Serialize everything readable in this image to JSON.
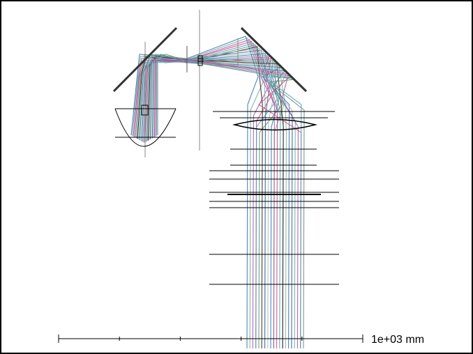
{
  "scale_bar": {
    "label": "1e+03 mm",
    "divisions": 5
  },
  "colors": {
    "background": "#ffffff",
    "border": "#000000",
    "optics": "#000000",
    "mirror": "#222222",
    "axis": "#888888"
  },
  "ray_colors": [
    "#3a7ab5",
    "#7fa89a",
    "#9b5fb0",
    "#d0507a",
    "#5aa0c8",
    "#6f8f72",
    "#2c2c2c",
    "#8fb3a8",
    "#4b6fa8",
    "#a8c0b8"
  ],
  "elements": [
    {
      "id": "fold-mirror-left",
      "type": "fold-mirror"
    },
    {
      "id": "fold-mirror-right",
      "type": "fold-mirror"
    },
    {
      "id": "primary-mirror",
      "type": "concave-mirror"
    },
    {
      "id": "field-stop",
      "type": "aperture"
    },
    {
      "id": "collimator-lens",
      "type": "lens"
    },
    {
      "id": "relay-surfaces",
      "type": "plane-surfaces"
    }
  ]
}
